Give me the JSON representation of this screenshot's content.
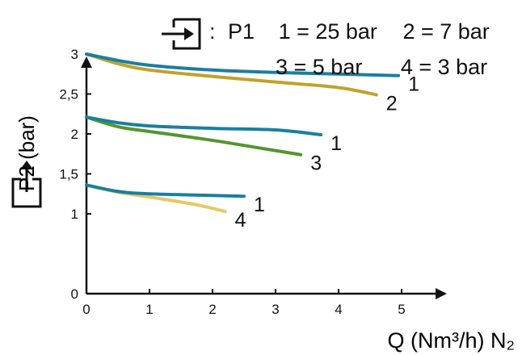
{
  "legend": {
    "inlet_prefix": ":",
    "inlet_label": "P1",
    "entries": [
      "1 = 25 bar",
      "2 = 7 bar",
      "3 = 5 bar",
      "4 = 3 bar"
    ]
  },
  "chart_data": {
    "type": "line",
    "xlabel": "Q (Nm³/h) N₂",
    "ylabel": "P2 (bar)",
    "xlim": [
      0,
      5.6
    ],
    "ylim": [
      0,
      3.5
    ],
    "x_ticks": [
      "0",
      "1",
      "2",
      "3",
      "4",
      "5"
    ],
    "y_ticks": [
      "0",
      "1",
      "1,5",
      "2",
      "2,5",
      "3"
    ],
    "y_tick_values": [
      0,
      1,
      1.5,
      2,
      2.5,
      3
    ],
    "x_tick_values": [
      0,
      1,
      2,
      3,
      4,
      5
    ],
    "colors": {
      "1": "#1a7fa0",
      "2": "#c1a22a",
      "3": "#55952d",
      "4": "#e6c866"
    },
    "series": [
      {
        "name": "1",
        "color": "#1a7fa0",
        "points": [
          [
            0,
            3.0
          ],
          [
            0.5,
            2.92
          ],
          [
            1,
            2.86
          ],
          [
            2,
            2.8
          ],
          [
            3,
            2.77
          ],
          [
            4,
            2.75
          ],
          [
            4.95,
            2.73
          ]
        ]
      },
      {
        "name": "2",
        "color": "#c1a22a",
        "points": [
          [
            0,
            3.0
          ],
          [
            0.5,
            2.88
          ],
          [
            1,
            2.8
          ],
          [
            2,
            2.72
          ],
          [
            3,
            2.65
          ],
          [
            4,
            2.58
          ],
          [
            4.6,
            2.49
          ]
        ]
      },
      {
        "name": "1",
        "color": "#1a7fa0",
        "points": [
          [
            0,
            2.21
          ],
          [
            0.5,
            2.14
          ],
          [
            1,
            2.1
          ],
          [
            2,
            2.07
          ],
          [
            3,
            2.05
          ],
          [
            3.72,
            1.99
          ]
        ]
      },
      {
        "name": "3",
        "color": "#55952d",
        "points": [
          [
            0,
            2.21
          ],
          [
            0.5,
            2.09
          ],
          [
            1,
            2.03
          ],
          [
            2,
            1.92
          ],
          [
            2.7,
            1.83
          ],
          [
            3.4,
            1.74
          ]
        ]
      },
      {
        "name": "1",
        "color": "#1a7fa0",
        "points": [
          [
            0,
            1.36
          ],
          [
            0.5,
            1.28
          ],
          [
            1,
            1.25
          ],
          [
            2,
            1.23
          ],
          [
            2.5,
            1.22
          ]
        ]
      },
      {
        "name": "4",
        "color": "#e6c866",
        "points": [
          [
            0,
            1.36
          ],
          [
            0.5,
            1.27
          ],
          [
            1,
            1.21
          ],
          [
            1.7,
            1.12
          ],
          [
            2.2,
            1.03
          ]
        ]
      }
    ]
  }
}
